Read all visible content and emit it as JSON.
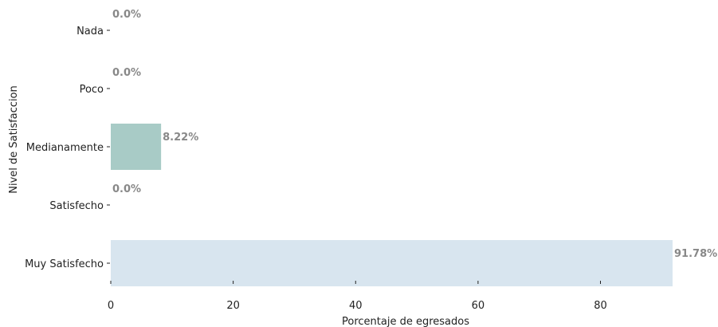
{
  "chart_data": {
    "type": "bar",
    "orientation": "horizontal",
    "categories": [
      "Nada",
      "Poco",
      "Medianamente",
      "Satisfecho",
      "Muy Satisfecho"
    ],
    "values": [
      0.0,
      0.0,
      8.22,
      0.0,
      91.78
    ],
    "value_labels": [
      "0.0%",
      "0.0%",
      "8.22%",
      "0.0%",
      "91.78%"
    ],
    "colors": [
      "#a8cbc6",
      "#a8cbc6",
      "#a8cbc6",
      "#d8e5ef",
      "#d8e5ef"
    ],
    "xlabel": "Porcentaje de egresados",
    "ylabel": "Nivel de Satisfaccion",
    "xticks": [
      0,
      20,
      40,
      60,
      80
    ],
    "xtick_labels": [
      "0",
      "20",
      "40",
      "60",
      "80"
    ],
    "xlim": [
      0,
      91.78
    ],
    "grid": false,
    "legend": "none"
  }
}
